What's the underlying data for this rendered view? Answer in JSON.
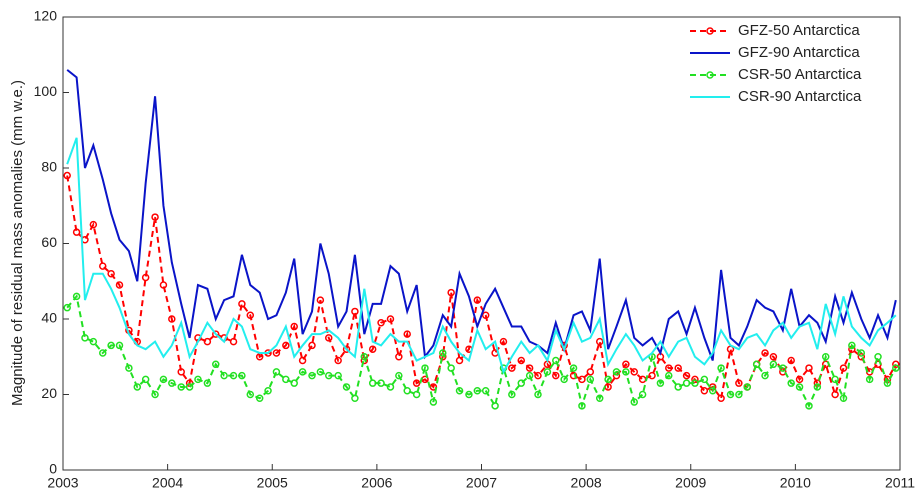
{
  "chart_data": {
    "type": "line",
    "ylabel": "Magnitude of residual mass anomalies (mm w.e.)",
    "xlim": [
      2003,
      2011
    ],
    "xticks": [
      2003,
      2004,
      2005,
      2006,
      2007,
      2008,
      2009,
      2010,
      2011
    ],
    "ylim": [
      0,
      120
    ],
    "yticks": [
      0,
      20,
      40,
      60,
      80,
      100,
      120
    ],
    "legend": "upper-right",
    "x": [
      2003.04,
      2003.13,
      2003.21,
      2003.29,
      2003.38,
      2003.46,
      2003.54,
      2003.63,
      2003.71,
      2003.79,
      2003.88,
      2003.96,
      2004.04,
      2004.13,
      2004.21,
      2004.29,
      2004.38,
      2004.46,
      2004.54,
      2004.63,
      2004.71,
      2004.79,
      2004.88,
      2004.96,
      2005.04,
      2005.13,
      2005.21,
      2005.29,
      2005.38,
      2005.46,
      2005.54,
      2005.63,
      2005.71,
      2005.79,
      2005.88,
      2005.96,
      2006.04,
      2006.13,
      2006.21,
      2006.29,
      2006.38,
      2006.46,
      2006.54,
      2006.63,
      2006.71,
      2006.79,
      2006.88,
      2006.96,
      2007.04,
      2007.13,
      2007.21,
      2007.29,
      2007.38,
      2007.46,
      2007.54,
      2007.63,
      2007.71,
      2007.79,
      2007.88,
      2007.96,
      2008.04,
      2008.13,
      2008.21,
      2008.29,
      2008.38,
      2008.46,
      2008.54,
      2008.63,
      2008.71,
      2008.79,
      2008.88,
      2008.96,
      2009.04,
      2009.13,
      2009.21,
      2009.29,
      2009.38,
      2009.46,
      2009.54,
      2009.63,
      2009.71,
      2009.79,
      2009.88,
      2009.96,
      2010.04,
      2010.13,
      2010.21,
      2010.29,
      2010.38,
      2010.46,
      2010.54,
      2010.63,
      2010.71,
      2010.79,
      2010.88,
      2010.96
    ],
    "series": [
      {
        "name": "GFZ-50 Antarctica",
        "color": "#ff0000",
        "dashed": true,
        "marker": "circle",
        "values": [
          78,
          63,
          61,
          65,
          54,
          52,
          49,
          37,
          34,
          51,
          67,
          49,
          40,
          26,
          23,
          35,
          34,
          36,
          35,
          34,
          44,
          41,
          30,
          31,
          31,
          33,
          38,
          29,
          33,
          45,
          35,
          29,
          32,
          42,
          29,
          32,
          39,
          40,
          30,
          36,
          23,
          24,
          22,
          30,
          47,
          29,
          32,
          45,
          41,
          31,
          34,
          27,
          29,
          27,
          25,
          28,
          25,
          33,
          25,
          24,
          26,
          34,
          22,
          25,
          28,
          26,
          24,
          25,
          30,
          27,
          27,
          25,
          24,
          21,
          22,
          19,
          32,
          23,
          22,
          28,
          31,
          30,
          26,
          29,
          24,
          27,
          23,
          28,
          20,
          27,
          32,
          30,
          26,
          28,
          24,
          28
        ]
      },
      {
        "name": "GFZ-90 Antarctica",
        "color": "#0a14c8",
        "dashed": false,
        "marker": "none",
        "values": [
          106,
          104,
          80,
          86,
          77,
          68,
          61,
          58,
          50,
          76,
          99,
          70,
          55,
          44,
          35,
          49,
          48,
          40,
          45,
          46,
          57,
          49,
          47,
          40,
          41,
          47,
          56,
          36,
          42,
          60,
          52,
          38,
          42,
          57,
          36,
          44,
          44,
          54,
          52,
          42,
          49,
          30,
          33,
          41,
          38,
          52,
          46,
          38,
          44,
          48,
          43,
          38,
          38,
          34,
          33,
          31,
          39,
          32,
          41,
          42,
          37,
          56,
          32,
          38,
          45,
          35,
          33,
          35,
          31,
          40,
          42,
          36,
          43,
          35,
          29,
          53,
          35,
          33,
          38,
          45,
          43,
          42,
          37,
          48,
          38,
          41,
          39,
          34,
          46,
          39,
          47,
          40,
          35,
          41,
          35,
          45
        ]
      },
      {
        "name": "CSR-50 Antarctica",
        "color": "#22e022",
        "dashed": true,
        "marker": "circle",
        "values": [
          43,
          46,
          35,
          34,
          31,
          33,
          33,
          27,
          22,
          24,
          20,
          24,
          23,
          22,
          22,
          24,
          23,
          28,
          25,
          25,
          25,
          20,
          19,
          21,
          26,
          24,
          23,
          26,
          25,
          26,
          25,
          25,
          22,
          19,
          30,
          23,
          23,
          22,
          25,
          21,
          20,
          27,
          18,
          31,
          27,
          21,
          20,
          21,
          21,
          17,
          27,
          20,
          23,
          25,
          20,
          26,
          29,
          24,
          27,
          17,
          24,
          19,
          24,
          26,
          26,
          18,
          20,
          30,
          23,
          25,
          22,
          23,
          23,
          24,
          21,
          27,
          20,
          20,
          22,
          28,
          25,
          28,
          27,
          23,
          22,
          17,
          22,
          30,
          24,
          19,
          33,
          31,
          24,
          30,
          23,
          27
        ]
      },
      {
        "name": "CSR-90 Antarctica",
        "color": "#22eeee",
        "dashed": false,
        "marker": "none",
        "values": [
          81,
          88,
          45,
          52,
          52,
          48,
          43,
          36,
          33,
          32,
          34,
          30,
          33,
          39,
          30,
          34,
          39,
          36,
          34,
          40,
          38,
          32,
          31,
          31,
          33,
          38,
          30,
          33,
          36,
          36,
          37,
          35,
          32,
          30,
          48,
          34,
          33,
          36,
          34,
          34,
          29,
          30,
          31,
          38,
          34,
          31,
          29,
          37,
          32,
          34,
          26,
          30,
          34,
          31,
          33,
          29,
          37,
          32,
          39,
          34,
          35,
          40,
          28,
          32,
          36,
          33,
          29,
          31,
          34,
          30,
          34,
          35,
          30,
          28,
          31,
          37,
          33,
          32,
          35,
          36,
          33,
          37,
          39,
          35,
          38,
          39,
          32,
          44,
          36,
          46,
          38,
          35,
          33,
          37,
          39,
          41
        ]
      }
    ]
  }
}
